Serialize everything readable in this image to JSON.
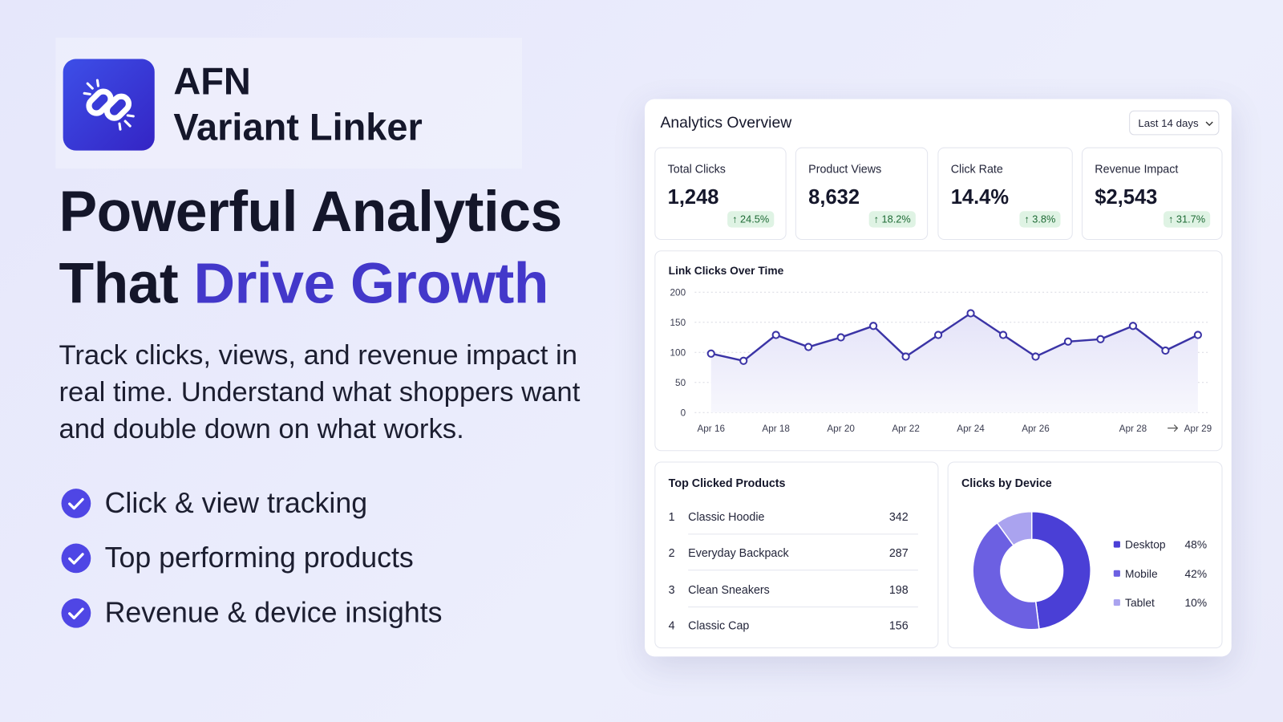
{
  "brand": {
    "name": "AFN",
    "product": "Variant Linker"
  },
  "headline": {
    "line1": "Powerful Analytics",
    "line2_plain": "That",
    "line2_accent": "Drive Growth"
  },
  "description": "Track clicks, views, and revenue impact in real time. Understand what shoppers want and double down on what works.",
  "features": [
    "Click & view tracking",
    "Top performing products",
    "Revenue & device insights"
  ],
  "dashboard": {
    "title": "Analytics Overview",
    "range": "Last 14 days",
    "kpis": [
      {
        "label": "Total Clicks",
        "value": "1,248",
        "change": "↑ 24.5%"
      },
      {
        "label": "Product Views",
        "value": "8,632",
        "change": "↑ 18.2%"
      },
      {
        "label": "Click Rate",
        "value": "14.4%",
        "change": "↑ 3.8%"
      },
      {
        "label": "Revenue Impact",
        "value": "$2,543",
        "change": "↑ 31.7%"
      }
    ],
    "line_chart": {
      "type": "line",
      "title": "Link Clicks Over Time",
      "categories": [
        "Apr 16",
        null,
        "Apr 18",
        null,
        "Apr 20",
        null,
        "Apr 22",
        null,
        "Apr 24",
        null,
        "Apr 26",
        null,
        null,
        "Apr 28",
        null,
        "Apr 29"
      ],
      "values": [
        98,
        86,
        129,
        109,
        125,
        144,
        93,
        129,
        165,
        129,
        93,
        118,
        122,
        144,
        103,
        129
      ],
      "ylim": [
        0,
        200
      ],
      "yticks": [
        0,
        50,
        100,
        150,
        200
      ],
      "color": "#3b34a6",
      "grid": true
    },
    "top_products": {
      "title": "Top Clicked Products",
      "rows": [
        {
          "rank": "1",
          "name": "Classic Hoodie",
          "clicks": 342
        },
        {
          "rank": "2",
          "name": "Everyday Backpack",
          "clicks": 287
        },
        {
          "rank": "3",
          "name": "Clean Sneakers",
          "clicks": 198
        },
        {
          "rank": "4",
          "name": "Classic Cap",
          "clicks": 156
        }
      ]
    },
    "devices": {
      "type": "pie",
      "title": "Clicks by Device",
      "categories": [
        "Desktop",
        "Mobile",
        "Tablet"
      ],
      "values": [
        48,
        42,
        10
      ],
      "value_labels": [
        "48%",
        "42%",
        "10%"
      ],
      "colors": [
        "#4a3fd6",
        "#6c60e2",
        "#aaa3ef"
      ]
    }
  }
}
